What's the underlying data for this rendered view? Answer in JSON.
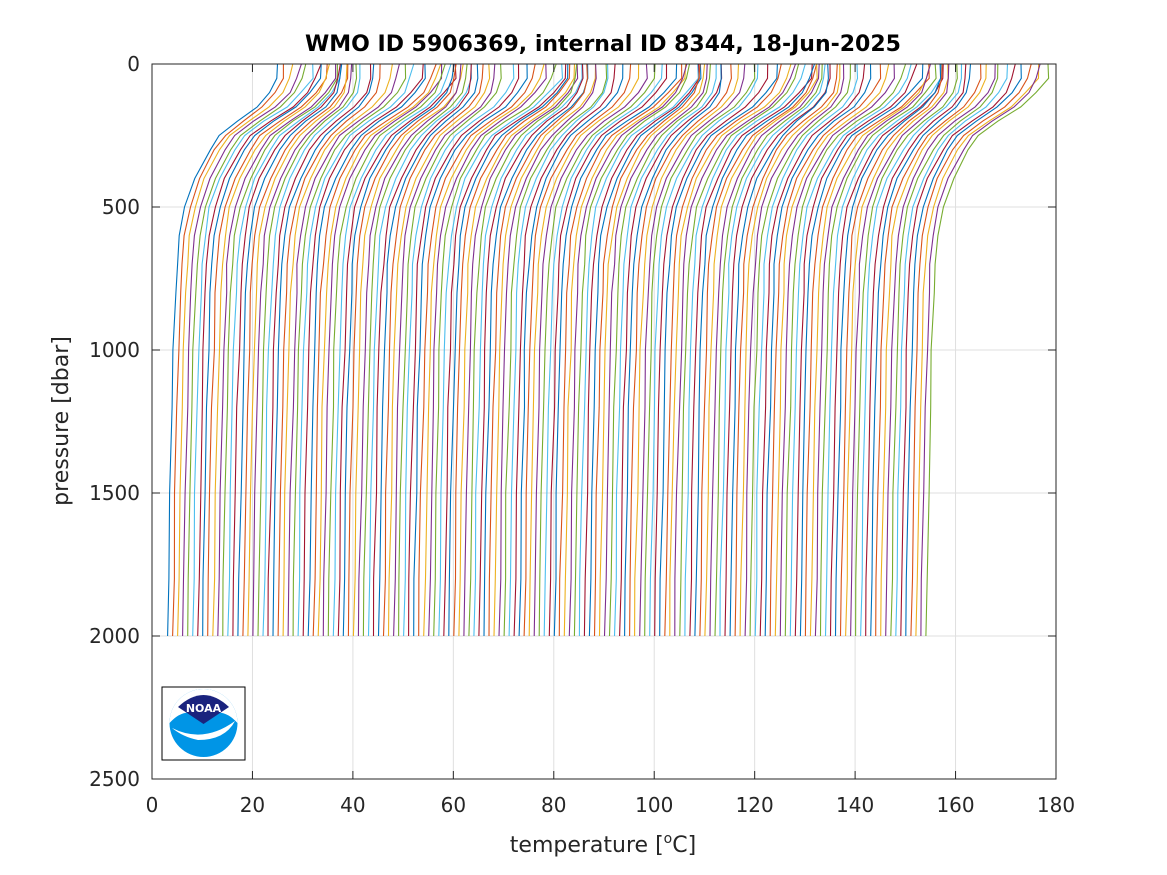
{
  "chart_data": {
    "type": "line",
    "title": "WMO ID 5906369, internal ID 8344, 18-Jun-2025",
    "xlabel": "temperature [",
    "xlabel_sup": "o",
    "xlabel_suffix": "C]",
    "ylabel": "pressure [dbar]",
    "xlim": [
      0,
      180
    ],
    "ylim": [
      0,
      2500
    ],
    "y_reversed": true,
    "grid": true,
    "x_ticks": [
      "0",
      "20",
      "40",
      "60",
      "80",
      "100",
      "120",
      "140",
      "160",
      "180"
    ],
    "y_ticks": [
      "0",
      "500",
      "1000",
      "1500",
      "2000",
      "2500"
    ],
    "series_count": 152,
    "offset_note": "profiles are offset horizontally; each successive profile shifted by about 1 degree",
    "profile_shape": {
      "pressure": [
        0,
        50,
        100,
        150,
        200,
        250,
        300,
        400,
        500,
        600,
        700,
        800,
        1000,
        1200,
        1500,
        1800,
        2000
      ],
      "temperature_shallow_example": [
        25,
        24.5,
        23.5,
        21,
        17,
        13.5,
        11.5,
        8.5,
        6.5,
        5.5,
        5.0,
        4.7,
        4.3,
        4.0,
        3.6,
        3.3,
        3.1
      ]
    },
    "line_colors": [
      "#0072BD",
      "#D95319",
      "#EDB120",
      "#7E2F8E",
      "#77AC30",
      "#4DBEEE",
      "#A2142F"
    ]
  },
  "logo": {
    "text": "NOAA",
    "icon": "noaa-logo-icon"
  }
}
